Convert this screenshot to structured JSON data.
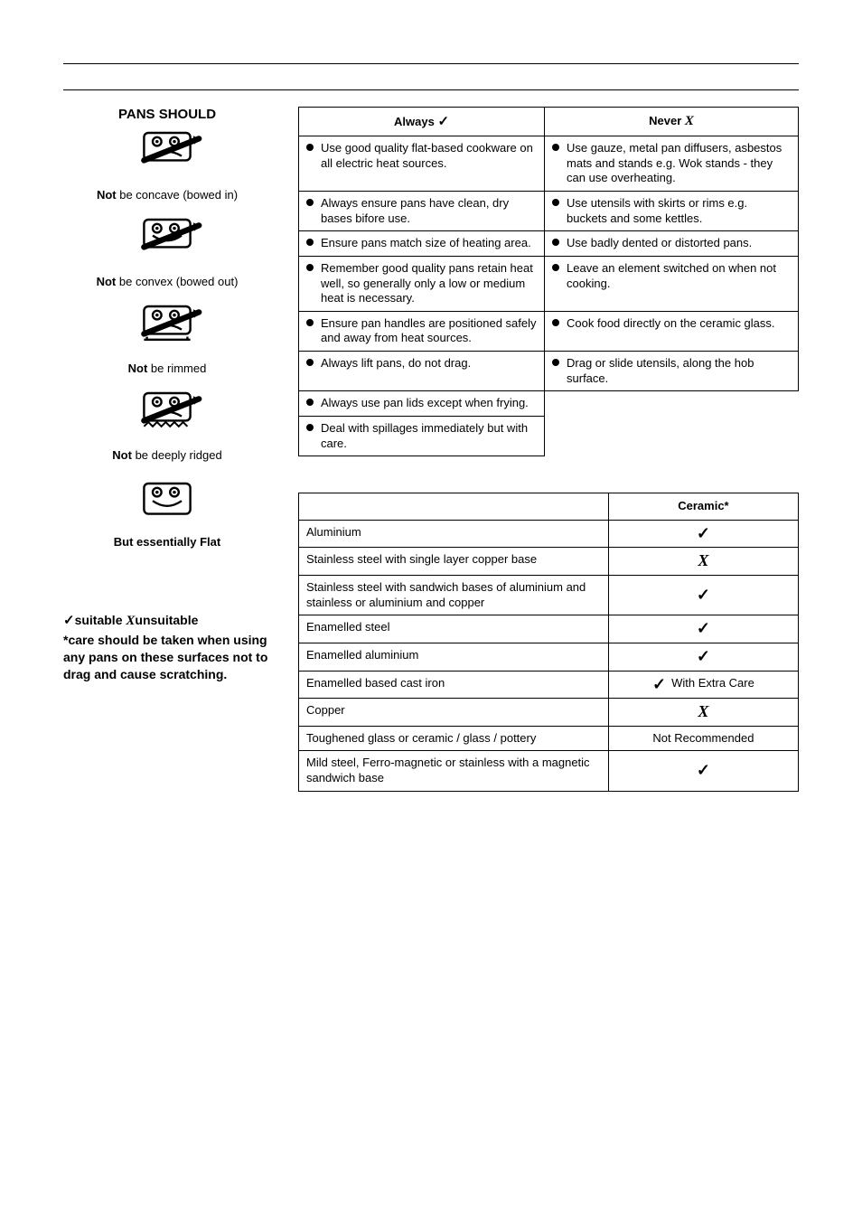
{
  "left": {
    "pans_title": "PANS SHOULD",
    "items": [
      {
        "cap_bold": "Not",
        "cap_rest": " be concave (bowed in)",
        "shape": "concave"
      },
      {
        "cap_bold": "Not",
        "cap_rest": " be convex (bowed out)",
        "shape": "convex"
      },
      {
        "cap_bold": "Not",
        "cap_rest": " be rimmed",
        "shape": "rimmed"
      },
      {
        "cap_bold": "Not",
        "cap_rest": " be deeply ridged",
        "shape": "ridged"
      },
      {
        "cap_bold": "But essentially Flat",
        "cap_rest": "",
        "shape": "flat"
      }
    ],
    "legend_suitable": "suitable",
    "legend_unsuitable": "unsuitable",
    "legend_rest": "*care should be taken when using any pans on these surfaces not to drag and cause scratching."
  },
  "tips": {
    "col_always": "Always",
    "col_never": "Never",
    "rows": [
      {
        "a": "Use good quality flat-based cookware on all electric heat sources.",
        "n": "Use gauze, metal pan diffusers, asbestos mats and stands e.g. Wok stands - they can use overheating."
      },
      {
        "a": "Always ensure pans have clean, dry bases bifore use.",
        "n": "Use utensils with skirts or rims e.g. buckets and some kettles."
      },
      {
        "a": "Ensure pans match size of heating area.",
        "n": "Use badly dented or distorted pans."
      },
      {
        "a": "Remember good quality pans retain heat well, so generally only a low or medium heat is necessary.",
        "n": "Leave an element switched on when not cooking."
      },
      {
        "a": "Ensure pan handles are positioned safely and away from heat sources.",
        "n": "Cook food directly on the ceramic glass."
      },
      {
        "a": "Always lift pans, do not drag.",
        "n": "Drag or slide utensils, along the hob surface."
      },
      {
        "a": "Always use pan lids except when frying.",
        "n": ""
      },
      {
        "a": "Deal with spillages immediately but with care.",
        "n": ""
      }
    ]
  },
  "materials": {
    "col_header": "Ceramic*",
    "rows": [
      {
        "m": "Aluminium",
        "v": "check"
      },
      {
        "m": "Stainless steel with single layer copper base",
        "v": "cross"
      },
      {
        "m": "Stainless steel with sandwich bases of aluminium and stainless or aluminium and copper",
        "v": "check"
      },
      {
        "m": "Enamelled steel",
        "v": "check"
      },
      {
        "m": "Enamelled aluminium",
        "v": "check"
      },
      {
        "m": "Enamelled based cast iron",
        "v": "care",
        "label": "With Extra Care"
      },
      {
        "m": "Copper",
        "v": "cross"
      },
      {
        "m": "Toughened glass or ceramic / glass / pottery",
        "v": "text",
        "label": "Not Recommended"
      },
      {
        "m": "Mild steel, Ferro-magnetic or stainless with a magnetic sandwich base",
        "v": "check"
      }
    ]
  },
  "colors": {
    "line": "#000000",
    "bg": "#ffffff",
    "text": "#000000"
  }
}
